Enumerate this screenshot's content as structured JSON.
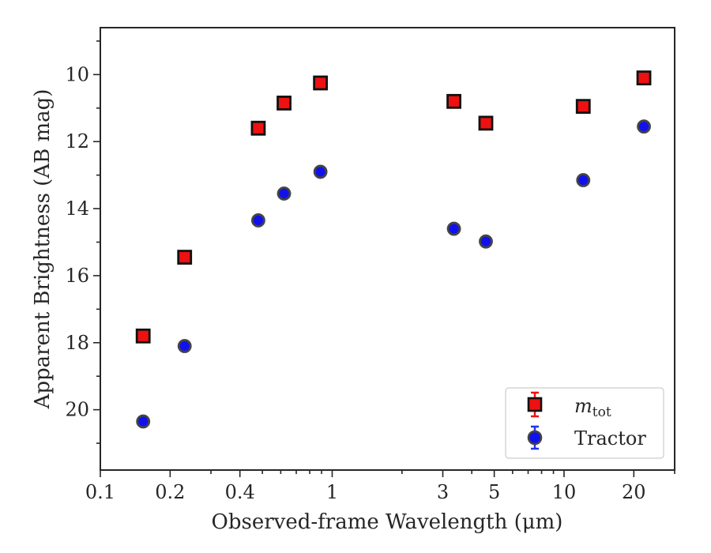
{
  "chart_data": {
    "type": "scatter",
    "xscale": "log",
    "xlabel": "Observed-frame Wavelength (μm)",
    "ylabel": "Apparent Brightness (AB mag)",
    "xlim": [
      0.1,
      30
    ],
    "ylim": [
      21.8,
      8.6
    ],
    "y_inverted": true,
    "grid": false,
    "legend_position": "lower-right",
    "x_tick_labels": [
      "0.1",
      "0.2",
      "0.4",
      "1",
      "3",
      "5",
      "10",
      "20"
    ],
    "x_tick_values": [
      0.1,
      0.2,
      0.4,
      1,
      3,
      5,
      10,
      20
    ],
    "y_tick_labels": [
      "10",
      "12",
      "14",
      "16",
      "18",
      "20"
    ],
    "y_tick_values": [
      10,
      12,
      14,
      16,
      18,
      20
    ],
    "series": [
      {
        "name": "m_tot",
        "marker": "square",
        "color": "#ee1111",
        "edge_color": "#111111",
        "x": [
          0.153,
          0.231,
          0.48,
          0.62,
          0.89,
          3.35,
          4.6,
          12.1,
          22.1
        ],
        "y": [
          17.8,
          15.45,
          11.6,
          10.85,
          10.25,
          10.8,
          11.45,
          10.95,
          10.1
        ]
      },
      {
        "name": "Tractor",
        "marker": "circle",
        "color": "#1111ee",
        "edge_color": "#444444",
        "x": [
          0.153,
          0.231,
          0.48,
          0.62,
          0.89,
          3.35,
          4.6,
          12.1,
          22.1
        ],
        "y": [
          20.35,
          18.1,
          14.35,
          13.55,
          12.9,
          14.6,
          14.98,
          13.15,
          11.55
        ]
      }
    ],
    "legend": [
      {
        "label_main": "m",
        "label_sub": "tot",
        "marker": "square"
      },
      {
        "label": "Tractor",
        "marker": "circle"
      }
    ]
  }
}
